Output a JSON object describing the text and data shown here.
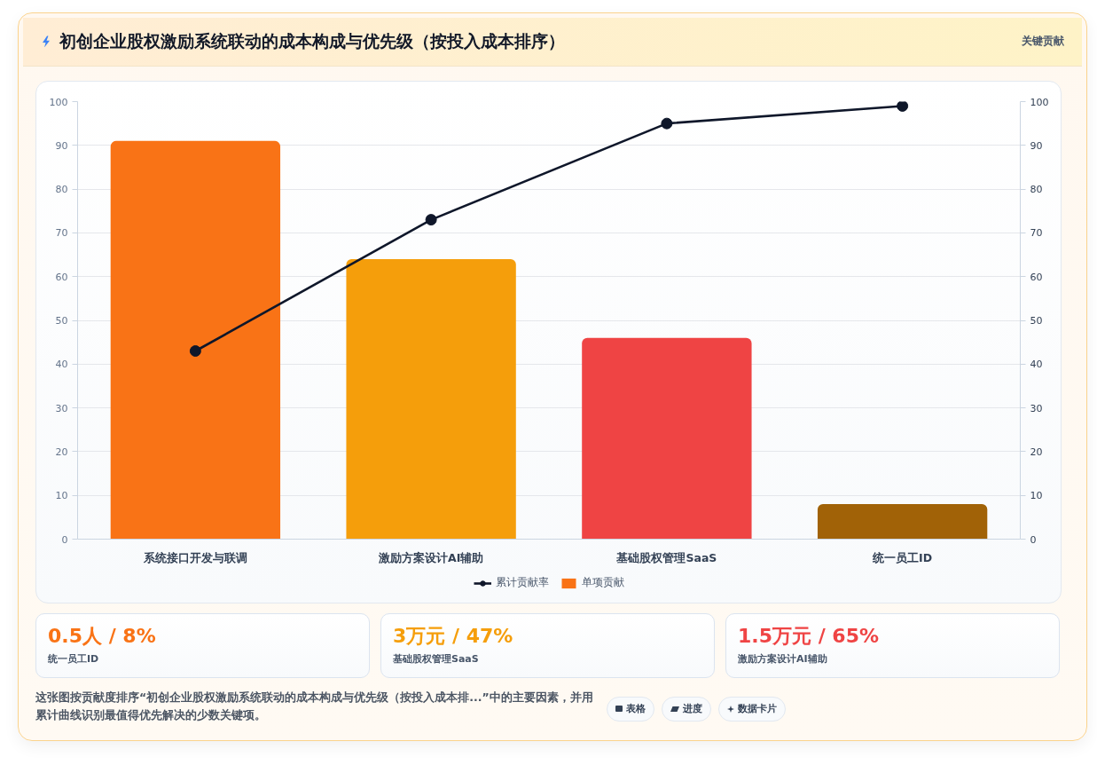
{
  "chart_data": [
    {
      "type": "bar",
      "title": "初创企业股权激励系统联动的成本构成与优先级（按投入成本排序）",
      "annotations": [
        "关键贡献",
        "这张图按贡献度排序“初创企业股权激励系统联动的成本构成与优先级（按投入成本排...”中的主要因素，并用累计曲线识别最值得优先解决的少数关键项。",
        "表格",
        "进度",
        "数据卡片"
      ],
      "categories": [
        "系统接口开发与联调",
        "激励方案设计AI辅助",
        "基础股权管理SaaS",
        "统一员工ID"
      ],
      "series": [
        {
          "name": "累计贡献率",
          "type": "line",
          "axis": "y2",
          "color": "#0f172a",
          "marker": "circle",
          "values": [
            43,
            73,
            95,
            99
          ]
        },
        {
          "name": "单项贡献",
          "type": "bar",
          "colors": [
            "#f97316",
            "#f59e0b",
            "#ef4444",
            "#a16207"
          ],
          "values": [
            91,
            64,
            46,
            8
          ]
        }
      ],
      "ylim": [
        0,
        100
      ],
      "yticks": [
        0,
        10,
        20,
        30,
        40,
        50,
        60,
        70,
        80,
        90,
        100
      ],
      "y2lim": [
        0,
        100
      ],
      "y2ticks": [
        0,
        10,
        20,
        30,
        40,
        50,
        60,
        70,
        80,
        90,
        100
      ],
      "grid": "y",
      "legend": "bottom"
    },
    {
      "type": "other",
      "categories": [
        "统一员工ID",
        "基础股权管理SaaS",
        "激励方案设计AI辅助"
      ],
      "value_labels": [
        "0.5人 / 8%",
        "3万元 / 47%",
        "1.5万元 / 65%"
      ]
    }
  ]
}
